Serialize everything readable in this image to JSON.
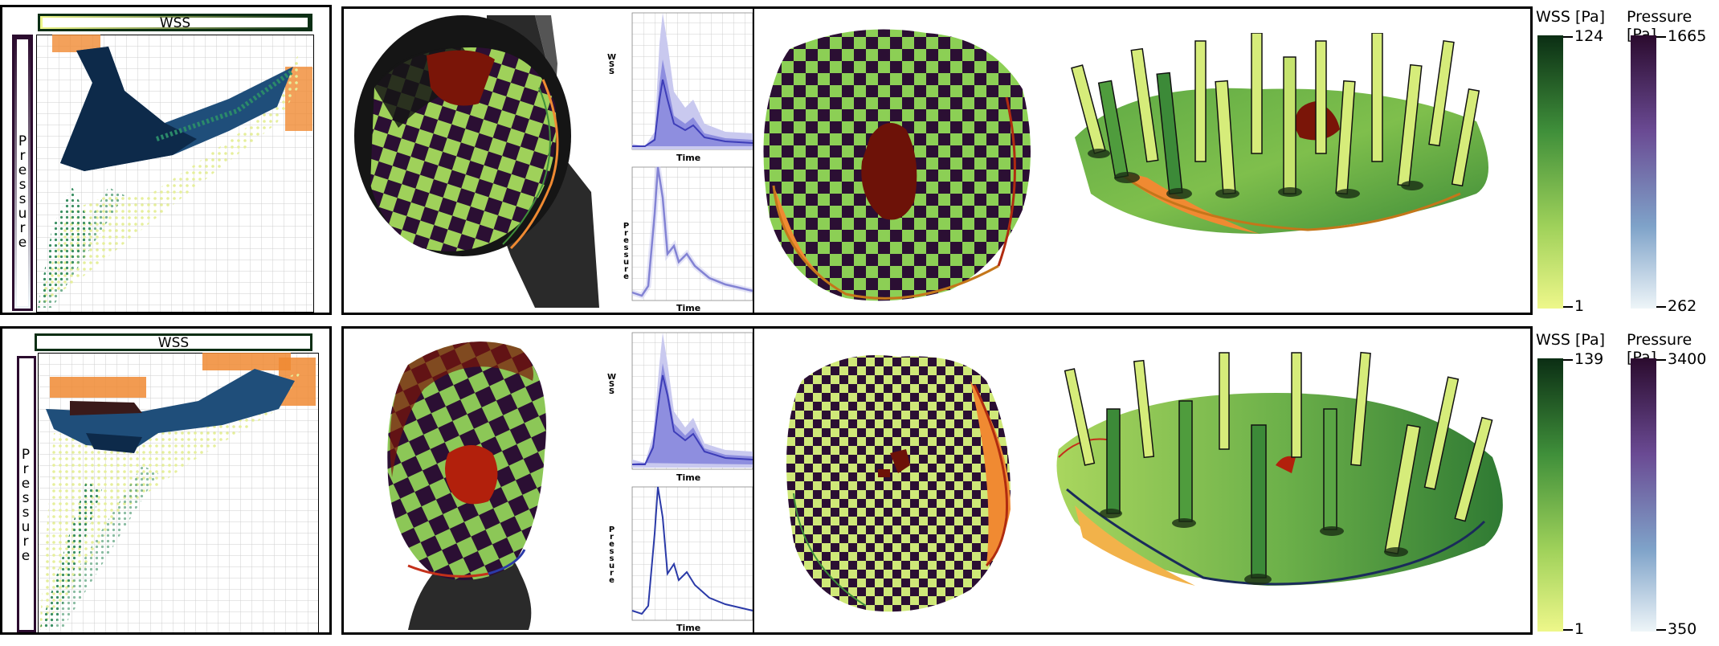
{
  "rows": [
    {
      "scatter": {
        "x_axis_label": "WSS",
        "y_axis_label": "Pressure"
      },
      "line_plots": {
        "top_ylabel": "WSS",
        "top_xlabel": "Time",
        "bottom_ylabel": "Pressure",
        "bottom_xlabel": "Time"
      },
      "colorbars": [
        {
          "title": "WSS [Pa]",
          "max": "124",
          "min": "1",
          "colors": [
            "#0b2e14",
            "#3f8f3a",
            "#9fd15a",
            "#eef78a"
          ]
        },
        {
          "title": "Pressure [Pa]",
          "max": "1665",
          "min": "262",
          "colors": [
            "#2b0b2e",
            "#6a4a93",
            "#7fa3c9",
            "#eef5f8"
          ]
        }
      ]
    },
    {
      "scatter": {
        "x_axis_label": "WSS",
        "y_axis_label": "Pressure"
      },
      "line_plots": {
        "top_ylabel": "WSS",
        "top_xlabel": "Time",
        "bottom_ylabel": "Pressure",
        "bottom_xlabel": "Time"
      },
      "colorbars": [
        {
          "title": "WSS [Pa]",
          "max": "139",
          "min": "1",
          "colors": [
            "#0b2e14",
            "#3f8f3a",
            "#9fd15a",
            "#eef78a"
          ]
        },
        {
          "title": "Pressure [Pa]",
          "max": "3400",
          "min": "350",
          "colors": [
            "#2b0b2e",
            "#6a4a93",
            "#7fa3c9",
            "#eef5f8"
          ]
        }
      ]
    }
  ],
  "palette": {
    "wss_dark": "#0b2e14",
    "wss_light": "#eef78a",
    "checker_dark": "#2b0f33",
    "checker_light": "#9fd15a",
    "region_red": "#7a1508",
    "orange": "#f08a32",
    "vessel_gray": "#2a2a2a"
  }
}
